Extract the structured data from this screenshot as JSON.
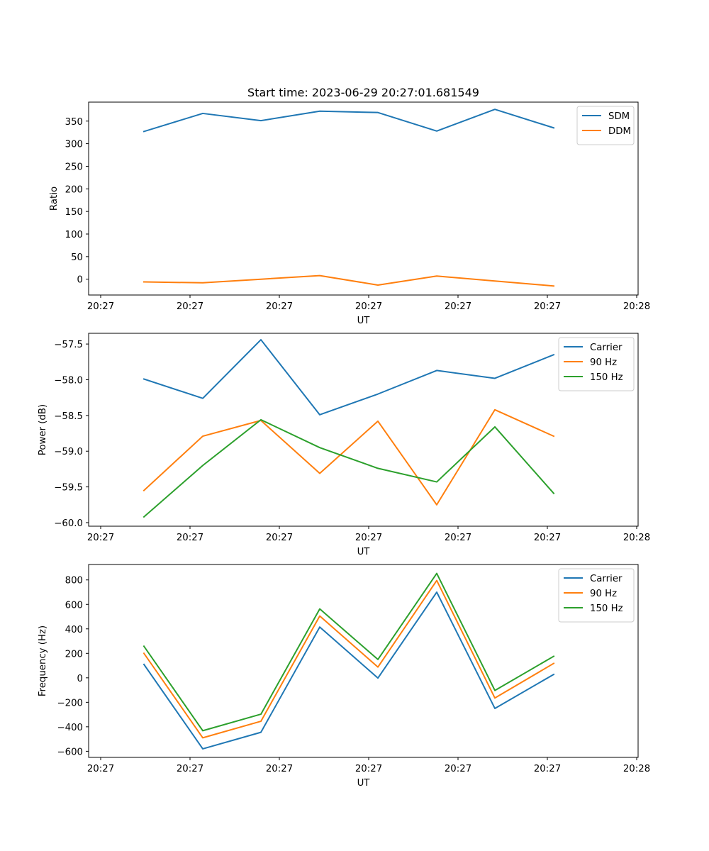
{
  "figure": {
    "title": "Start time: 2023-06-29 20:27:01.681549"
  },
  "colors": {
    "blue": "#1f77b4",
    "orange": "#ff7f0e",
    "green": "#2ca02c"
  },
  "chart_data": [
    {
      "type": "line",
      "title": "Start time: 2023-06-29 20:27:01.681549",
      "xlabel": "UT",
      "ylabel": "Ratio",
      "x_tick_labels": [
        "20:27",
        "20:27",
        "20:27",
        "20:27",
        "20:27",
        "20:27",
        "20:28"
      ],
      "y_ticks": [
        0,
        50,
        100,
        150,
        200,
        250,
        300,
        350
      ],
      "ylim": [
        -35,
        392
      ],
      "grid": false,
      "legend_position": "top-right",
      "series": [
        {
          "name": "SDM",
          "color": "#1f77b4",
          "values": [
            327,
            367,
            351,
            372,
            369,
            328,
            376,
            335
          ]
        },
        {
          "name": "DDM",
          "color": "#ff7f0e",
          "values": [
            -6,
            -8,
            0,
            8,
            -13,
            7,
            -4,
            -15
          ]
        }
      ]
    },
    {
      "type": "line",
      "title": "",
      "xlabel": "UT",
      "ylabel": "Power (dB)",
      "x_tick_labels": [
        "20:27",
        "20:27",
        "20:27",
        "20:27",
        "20:27",
        "20:27",
        "20:28"
      ],
      "y_ticks": [
        -60.0,
        -59.5,
        -59.0,
        -58.5,
        -58.0,
        -57.5
      ],
      "y_tick_labels": [
        "−60.0",
        "−59.5",
        "−59.0",
        "−58.5",
        "−58.0",
        "−57.5"
      ],
      "ylim": [
        -60.05,
        -57.35
      ],
      "grid": false,
      "legend_position": "top-right",
      "series": [
        {
          "name": "Carrier",
          "color": "#1f77b4",
          "values": [
            -57.99,
            -58.26,
            -57.44,
            -58.49,
            -58.2,
            -57.87,
            -57.98,
            -57.65
          ]
        },
        {
          "name": "90 Hz",
          "color": "#ff7f0e",
          "values": [
            -59.55,
            -58.79,
            -58.57,
            -59.31,
            -58.58,
            -59.75,
            -58.42,
            -58.79
          ]
        },
        {
          "name": "150 Hz",
          "color": "#2ca02c",
          "values": [
            -59.92,
            -59.2,
            -58.56,
            -58.95,
            -59.24,
            -59.43,
            -58.66,
            -59.59
          ]
        }
      ]
    },
    {
      "type": "line",
      "title": "",
      "xlabel": "UT",
      "ylabel": "Frequency (Hz)",
      "x_tick_labels": [
        "20:27",
        "20:27",
        "20:27",
        "20:27",
        "20:27",
        "20:27",
        "20:28"
      ],
      "y_ticks": [
        -600,
        -400,
        -200,
        0,
        200,
        400,
        600,
        800
      ],
      "y_tick_labels": [
        "−600",
        "−400",
        "−200",
        "0",
        "200",
        "400",
        "600",
        "800"
      ],
      "ylim": [
        -650,
        926
      ],
      "grid": false,
      "legend_position": "top-right",
      "series": [
        {
          "name": "Carrier",
          "color": "#1f77b4",
          "values": [
            110,
            -580,
            -445,
            415,
            -2,
            700,
            -250,
            28
          ]
        },
        {
          "name": "90 Hz",
          "color": "#ff7f0e",
          "values": [
            200,
            -490,
            -355,
            505,
            88,
            795,
            -165,
            118
          ]
        },
        {
          "name": "150 Hz",
          "color": "#2ca02c",
          "values": [
            258,
            -432,
            -297,
            563,
            150,
            853,
            -103,
            176
          ]
        }
      ]
    }
  ]
}
